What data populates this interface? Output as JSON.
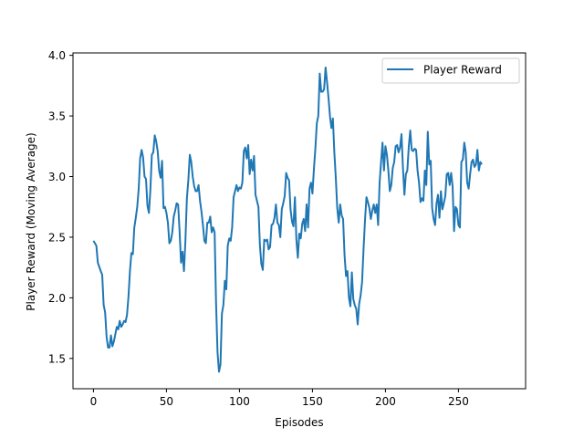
{
  "chart_data": {
    "type": "line",
    "xlabel": "Episodes",
    "ylabel": "Player Reward (Moving Average)",
    "xlim": [
      -14,
      296
    ],
    "ylim": [
      1.25,
      4.02
    ],
    "xticks": [
      0,
      50,
      100,
      150,
      200,
      250
    ],
    "yticks": [
      1.5,
      2.0,
      2.5,
      3.0,
      3.5,
      4.0
    ],
    "xtick_labels": [
      "0",
      "50",
      "100",
      "150",
      "200",
      "250"
    ],
    "ytick_labels": [
      "1.5",
      "2.0",
      "2.5",
      "3.0",
      "3.5",
      "4.0"
    ],
    "grid": false,
    "legend_position": "top-right",
    "colors": {
      "series": "#1f77b4",
      "axes": "#000000",
      "background": "#ffffff"
    },
    "series": [
      {
        "name": "Player Reward",
        "points": [
          [
            0,
            2.47
          ],
          [
            2,
            2.43
          ],
          [
            3,
            2.29
          ],
          [
            5,
            2.22
          ],
          [
            6,
            2.19
          ],
          [
            7,
            1.94
          ],
          [
            8,
            1.88
          ],
          [
            9,
            1.68
          ],
          [
            10,
            1.59
          ],
          [
            11,
            1.59
          ],
          [
            12,
            1.69
          ],
          [
            13,
            1.6
          ],
          [
            14,
            1.64
          ],
          [
            15,
            1.7
          ],
          [
            16,
            1.76
          ],
          [
            17,
            1.74
          ],
          [
            18,
            1.81
          ],
          [
            19,
            1.76
          ],
          [
            20,
            1.78
          ],
          [
            21,
            1.81
          ],
          [
            22,
            1.8
          ],
          [
            23,
            1.86
          ],
          [
            24,
            2.01
          ],
          [
            25,
            2.22
          ],
          [
            26,
            2.37
          ],
          [
            27,
            2.36
          ],
          [
            28,
            2.58
          ],
          [
            29,
            2.66
          ],
          [
            30,
            2.75
          ],
          [
            31,
            2.9
          ],
          [
            32,
            3.15
          ],
          [
            33,
            3.22
          ],
          [
            34,
            3.16
          ],
          [
            35,
            3.0
          ],
          [
            36,
            2.98
          ],
          [
            37,
            2.76
          ],
          [
            38,
            2.7
          ],
          [
            39,
            2.89
          ],
          [
            40,
            3.18
          ],
          [
            41,
            3.2
          ],
          [
            42,
            3.34
          ],
          [
            43,
            3.29
          ],
          [
            44,
            3.21
          ],
          [
            45,
            3.05
          ],
          [
            46,
            2.99
          ],
          [
            47,
            3.13
          ],
          [
            48,
            2.74
          ],
          [
            49,
            2.75
          ],
          [
            50,
            2.7
          ],
          [
            51,
            2.62
          ],
          [
            52,
            2.45
          ],
          [
            53,
            2.47
          ],
          [
            54,
            2.54
          ],
          [
            55,
            2.67
          ],
          [
            56,
            2.72
          ],
          [
            57,
            2.78
          ],
          [
            58,
            2.77
          ],
          [
            59,
            2.55
          ],
          [
            60,
            2.29
          ],
          [
            61,
            2.38
          ],
          [
            62,
            2.22
          ],
          [
            63,
            2.47
          ],
          [
            64,
            2.82
          ],
          [
            65,
            2.97
          ],
          [
            66,
            3.18
          ],
          [
            67,
            3.12
          ],
          [
            68,
            3.0
          ],
          [
            69,
            2.92
          ],
          [
            70,
            2.88
          ],
          [
            71,
            2.88
          ],
          [
            72,
            2.93
          ],
          [
            73,
            2.8
          ],
          [
            74,
            2.71
          ],
          [
            75,
            2.6
          ],
          [
            76,
            2.47
          ],
          [
            77,
            2.45
          ],
          [
            78,
            2.62
          ],
          [
            79,
            2.62
          ],
          [
            80,
            2.67
          ],
          [
            81,
            2.54
          ],
          [
            82,
            2.58
          ],
          [
            83,
            2.54
          ],
          [
            84,
            1.95
          ],
          [
            85,
            1.55
          ],
          [
            86,
            1.39
          ],
          [
            87,
            1.45
          ],
          [
            88,
            1.87
          ],
          [
            89,
            1.94
          ],
          [
            90,
            2.14
          ],
          [
            91,
            2.07
          ],
          [
            92,
            2.43
          ],
          [
            93,
            2.49
          ],
          [
            94,
            2.47
          ],
          [
            95,
            2.58
          ],
          [
            96,
            2.83
          ],
          [
            97,
            2.88
          ],
          [
            98,
            2.93
          ],
          [
            99,
            2.88
          ],
          [
            100,
            2.91
          ],
          [
            101,
            2.9
          ],
          [
            102,
            2.95
          ],
          [
            103,
            3.21
          ],
          [
            104,
            3.24
          ],
          [
            105,
            3.15
          ],
          [
            106,
            3.26
          ],
          [
            107,
            3.02
          ],
          [
            108,
            3.14
          ],
          [
            109,
            3.05
          ],
          [
            110,
            3.17
          ],
          [
            111,
            2.85
          ],
          [
            112,
            2.8
          ],
          [
            113,
            2.75
          ],
          [
            114,
            2.44
          ],
          [
            115,
            2.28
          ],
          [
            116,
            2.23
          ],
          [
            117,
            2.48
          ],
          [
            118,
            2.47
          ],
          [
            119,
            2.48
          ],
          [
            120,
            2.4
          ],
          [
            121,
            2.42
          ],
          [
            122,
            2.6
          ],
          [
            123,
            2.61
          ],
          [
            124,
            2.66
          ],
          [
            125,
            2.77
          ],
          [
            126,
            2.62
          ],
          [
            127,
            2.6
          ],
          [
            128,
            2.5
          ],
          [
            129,
            2.73
          ],
          [
            130,
            2.78
          ],
          [
            131,
            2.84
          ],
          [
            132,
            3.03
          ],
          [
            133,
            2.99
          ],
          [
            134,
            2.97
          ],
          [
            135,
            2.73
          ],
          [
            136,
            2.63
          ],
          [
            137,
            2.59
          ],
          [
            138,
            2.83
          ],
          [
            139,
            2.48
          ],
          [
            140,
            2.33
          ],
          [
            141,
            2.53
          ],
          [
            142,
            2.49
          ],
          [
            143,
            2.61
          ],
          [
            144,
            2.65
          ],
          [
            145,
            2.55
          ],
          [
            146,
            2.77
          ],
          [
            147,
            2.58
          ],
          [
            148,
            2.9
          ],
          [
            149,
            2.95
          ],
          [
            150,
            2.86
          ],
          [
            151,
            3.06
          ],
          [
            152,
            3.23
          ],
          [
            153,
            3.44
          ],
          [
            154,
            3.5
          ],
          [
            155,
            3.85
          ],
          [
            156,
            3.7
          ],
          [
            157,
            3.7
          ],
          [
            158,
            3.72
          ],
          [
            159,
            3.9
          ],
          [
            160,
            3.78
          ],
          [
            161,
            3.65
          ],
          [
            162,
            3.5
          ],
          [
            163,
            3.4
          ],
          [
            164,
            3.48
          ],
          [
            165,
            3.2
          ],
          [
            166,
            2.99
          ],
          [
            167,
            2.74
          ],
          [
            168,
            2.62
          ],
          [
            169,
            2.77
          ],
          [
            170,
            2.68
          ],
          [
            171,
            2.65
          ],
          [
            172,
            2.35
          ],
          [
            173,
            2.18
          ],
          [
            174,
            2.22
          ],
          [
            175,
            2.0
          ],
          [
            176,
            1.93
          ],
          [
            177,
            2.21
          ],
          [
            178,
            1.99
          ],
          [
            179,
            1.94
          ],
          [
            180,
            1.91
          ],
          [
            181,
            1.78
          ],
          [
            182,
            1.95
          ],
          [
            183,
            2.02
          ],
          [
            184,
            2.13
          ],
          [
            185,
            2.4
          ],
          [
            186,
            2.64
          ],
          [
            187,
            2.83
          ],
          [
            188,
            2.79
          ],
          [
            189,
            2.74
          ],
          [
            190,
            2.65
          ],
          [
            191,
            2.72
          ],
          [
            192,
            2.77
          ],
          [
            193,
            2.7
          ],
          [
            194,
            2.77
          ],
          [
            195,
            2.6
          ],
          [
            196,
            2.95
          ],
          [
            197,
            3.12
          ],
          [
            198,
            3.28
          ],
          [
            199,
            3.05
          ],
          [
            200,
            3.25
          ],
          [
            201,
            3.18
          ],
          [
            202,
            3.05
          ],
          [
            203,
            2.88
          ],
          [
            204,
            2.93
          ],
          [
            205,
            3.07
          ],
          [
            206,
            3.12
          ],
          [
            207,
            3.25
          ],
          [
            208,
            3.26
          ],
          [
            209,
            3.2
          ],
          [
            210,
            3.24
          ],
          [
            211,
            3.35
          ],
          [
            212,
            3.07
          ],
          [
            213,
            2.85
          ],
          [
            214,
            3.02
          ],
          [
            215,
            3.05
          ],
          [
            216,
            3.25
          ],
          [
            217,
            3.38
          ],
          [
            218,
            3.22
          ],
          [
            219,
            3.21
          ],
          [
            220,
            3.23
          ],
          [
            221,
            3.22
          ],
          [
            222,
            3.05
          ],
          [
            223,
            2.95
          ],
          [
            224,
            2.79
          ],
          [
            225,
            2.82
          ],
          [
            226,
            2.8
          ],
          [
            227,
            3.05
          ],
          [
            228,
            2.93
          ],
          [
            229,
            3.37
          ],
          [
            230,
            3.1
          ],
          [
            231,
            3.13
          ],
          [
            232,
            2.74
          ],
          [
            233,
            2.65
          ],
          [
            234,
            2.6
          ],
          [
            235,
            2.78
          ],
          [
            236,
            2.85
          ],
          [
            237,
            2.66
          ],
          [
            238,
            2.88
          ],
          [
            239,
            2.73
          ],
          [
            240,
            2.78
          ],
          [
            241,
            2.84
          ],
          [
            242,
            3.02
          ],
          [
            243,
            3.03
          ],
          [
            244,
            2.93
          ],
          [
            245,
            3.03
          ],
          [
            246,
            2.92
          ],
          [
            247,
            2.55
          ],
          [
            248,
            2.75
          ],
          [
            249,
            2.73
          ],
          [
            250,
            2.6
          ],
          [
            251,
            2.58
          ],
          [
            252,
            3.12
          ],
          [
            253,
            3.14
          ],
          [
            254,
            3.28
          ],
          [
            255,
            3.2
          ],
          [
            256,
            2.95
          ],
          [
            257,
            2.9
          ],
          [
            258,
            3.02
          ],
          [
            259,
            3.12
          ],
          [
            260,
            3.14
          ],
          [
            261,
            3.08
          ],
          [
            262,
            3.1
          ],
          [
            263,
            3.22
          ],
          [
            264,
            3.05
          ],
          [
            265,
            3.12
          ],
          [
            266,
            3.1
          ]
        ]
      }
    ]
  }
}
